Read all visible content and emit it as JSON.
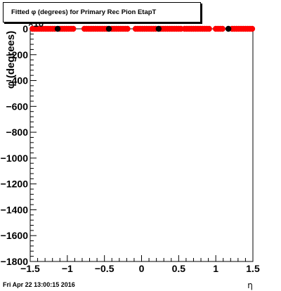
{
  "chart_data": {
    "type": "scatter",
    "title": "Fitted φ (degrees) for Primary Rec Pion EtapT",
    "xlabel": "η",
    "ylabel": "φ (degrees)",
    "y_exponent_label": "×10",
    "xlim": [
      -1.5,
      1.5
    ],
    "ylim": [
      -1800,
      0
    ],
    "x_ticks": [
      -1.5,
      -1,
      -0.5,
      0,
      0.5,
      1,
      1.5
    ],
    "x_tick_labels": [
      "−1.5",
      "−1",
      "−0.5",
      "0",
      "0.5",
      "1",
      "1.5"
    ],
    "y_ticks": [
      0,
      -200,
      -400,
      -600,
      -800,
      -1000,
      -1200,
      -1400,
      -1600,
      -1800
    ],
    "y_tick_labels": [
      "0",
      "−200",
      "−400",
      "−600",
      "−800",
      "−1000",
      "−1200",
      "−1400",
      "−1600",
      "−1800"
    ],
    "grid": false,
    "colors": {
      "red_points": "#ff0000",
      "black_points": "#000000",
      "axis": "#000000"
    },
    "series": [
      {
        "color": "red",
        "x": [
          -1.47,
          -1.44,
          -1.41,
          -1.38,
          -1.35,
          -1.32,
          -1.29,
          -1.26,
          -1.23,
          -1.2,
          -1.17,
          -1.1,
          -1.07,
          -1.04,
          -1.01,
          -0.98,
          -0.95,
          -0.92,
          -0.77,
          -0.74,
          -0.71,
          -0.68,
          -0.65,
          -0.62,
          -0.59,
          -0.56,
          -0.53,
          -0.5,
          -0.47,
          -0.4,
          -0.37,
          -0.34,
          -0.31,
          -0.28,
          -0.25,
          -0.22,
          -0.19,
          -0.08,
          -0.05,
          -0.02,
          0.01,
          0.04,
          0.07,
          0.1,
          0.13,
          0.16,
          0.19,
          0.26,
          0.29,
          0.32,
          0.35,
          0.38,
          0.41,
          0.44,
          0.47,
          0.5,
          0.53,
          0.58,
          0.61,
          0.64,
          0.67,
          0.7,
          0.73,
          0.76,
          0.79,
          0.82,
          0.85,
          0.88,
          0.91,
          1.0,
          1.03,
          1.06,
          1.09,
          1.22,
          1.25,
          1.28,
          1.31,
          1.34,
          1.37,
          1.4,
          1.43,
          1.46,
          1.49
        ],
        "y": [
          0,
          0,
          0,
          0,
          0,
          0,
          0,
          0,
          0,
          0,
          0,
          0,
          0,
          0,
          0,
          0,
          0,
          0,
          0,
          0,
          0,
          0,
          0,
          0,
          0,
          0,
          0,
          0,
          0,
          0,
          0,
          0,
          0,
          0,
          0,
          0,
          0,
          0,
          0,
          0,
          0,
          0,
          0,
          0,
          0,
          0,
          0,
          0,
          0,
          0,
          0,
          0,
          0,
          0,
          0,
          0,
          0,
          0,
          0,
          0,
          0,
          0,
          0,
          0,
          0,
          0,
          0,
          0,
          0,
          0,
          0,
          0,
          0,
          0,
          0,
          0,
          0,
          0,
          0,
          0,
          0,
          0,
          0
        ]
      },
      {
        "color": "black",
        "x": [
          -1.13,
          -0.44,
          0.23,
          1.17
        ],
        "y": [
          0,
          0,
          0,
          0
        ]
      }
    ]
  },
  "footer": {
    "timestamp": "Fri Apr 22 13:00:15 2016"
  }
}
